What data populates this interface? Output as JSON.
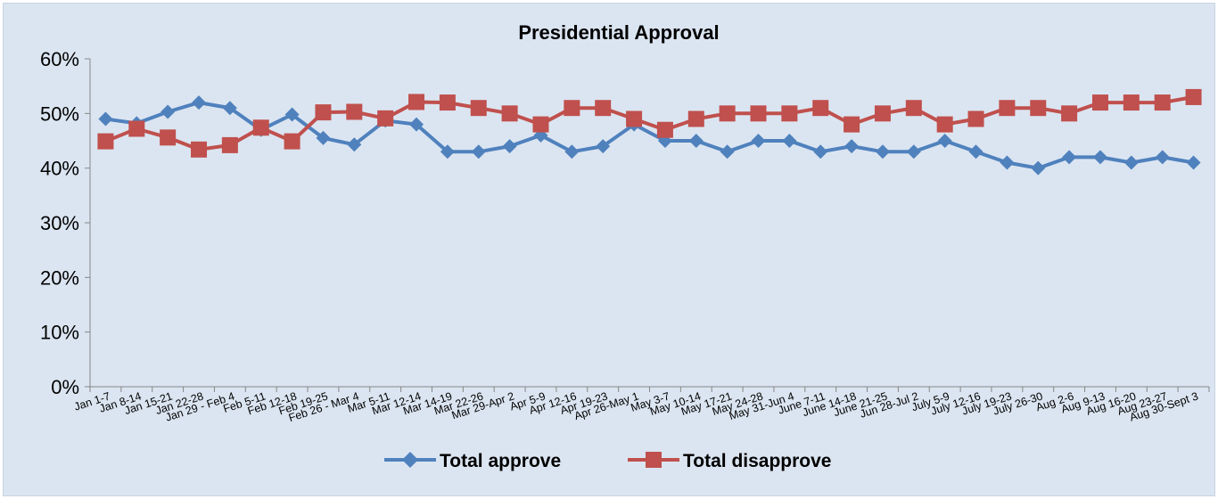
{
  "chart_data": {
    "type": "line",
    "title": "Presidential Approval",
    "xlabel": "",
    "ylabel": "",
    "ylim": [
      0,
      60
    ],
    "yticks": [
      "0%",
      "10%",
      "20%",
      "30%",
      "40%",
      "50%",
      "60%"
    ],
    "grid": false,
    "legend": "bottom",
    "categories": [
      "Jan 1-7",
      "Jan 8-14",
      "Jan 15-21",
      "Jan 22-28",
      "Jan 29 - Feb 4",
      "Feb 5-11",
      "Feb 12-18",
      "Feb 19-25",
      "Feb 26 - Mar 4",
      "Mar 5-11",
      "Mar 12-14",
      "Mar 14-19",
      "Mar 22-26",
      "Mar 29-Apr 2",
      "Apr 5-9",
      "Apr 12-16",
      "Apr 19-23",
      "Apr 26-May 1",
      "May 3-7",
      "May 10-14",
      "May 17-21",
      "May 24-28",
      "May 31-Jun 4",
      "June 7-11",
      "June 14-18",
      "June 21-25",
      "Jun 28-Jul 2",
      "July 5-9",
      "July 12-16",
      "July 19-23",
      "July 26-30",
      "Aug 2-6",
      "Aug 9-13",
      "Aug 16-20",
      "Aug 23-27",
      "Aug 30-Sept 3"
    ],
    "series": [
      {
        "name": "Total approve",
        "color": "#4f81bd",
        "marker": "diamond",
        "values": [
          49,
          48.2,
          50.3,
          52,
          51,
          47,
          49.8,
          45.5,
          44.3,
          48.7,
          48,
          43,
          43,
          44,
          46,
          43,
          44,
          48,
          45,
          45,
          43,
          45,
          45,
          43,
          44,
          43,
          43,
          45,
          43,
          41,
          40,
          42,
          42,
          41,
          42,
          41
        ]
      },
      {
        "name": "Total disapprove",
        "color": "#c0504d",
        "marker": "square",
        "values": [
          44.9,
          47.2,
          45.6,
          43.4,
          44.2,
          47.4,
          44.9,
          50.2,
          50.3,
          49.1,
          52.1,
          52,
          51,
          50,
          48,
          51,
          51,
          49,
          47,
          49,
          50,
          50,
          50,
          51,
          48,
          50,
          51,
          48,
          49,
          51,
          51,
          50,
          52,
          52,
          52,
          53
        ]
      }
    ]
  }
}
